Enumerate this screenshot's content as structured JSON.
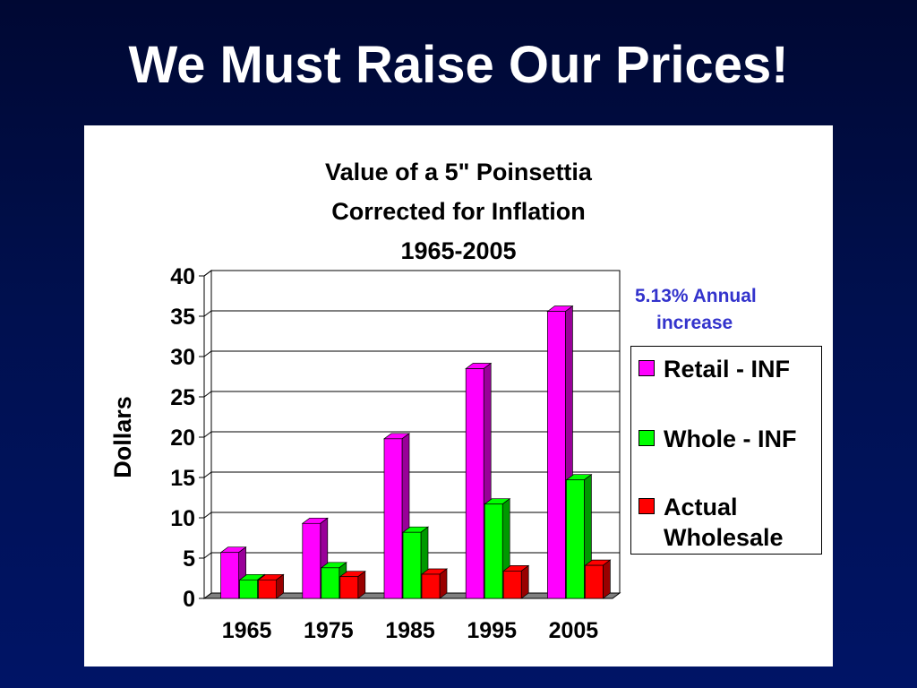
{
  "slide": {
    "title": "We Must Raise Our Prices!"
  },
  "chart": {
    "title_lines": [
      "Value of a 5\" Poinsettia",
      "Corrected for Inflation",
      "1965-2005"
    ],
    "annotation_lines": [
      "5.13% Annual",
      "increase"
    ],
    "legend": [
      {
        "label": "Retail - INF",
        "color": "#ff00ff"
      },
      {
        "label": "Whole - INF",
        "color": "#00ff00"
      },
      {
        "label": "Actual Wholesale",
        "color": "#ff0000"
      }
    ]
  },
  "chart_data": {
    "type": "bar",
    "title": "Value of a 5\" Poinsettia Corrected for Inflation 1965-2005",
    "ylabel": "Dollars",
    "xlabel": "",
    "categories": [
      "1965",
      "1975",
      "1985",
      "1995",
      "2005"
    ],
    "ylim": [
      0,
      40
    ],
    "yticks": [
      0,
      5,
      10,
      15,
      20,
      25,
      30,
      35,
      40
    ],
    "grid": true,
    "legend_position": "right",
    "series": [
      {
        "name": "Retail - INF",
        "color": "#ff00ff",
        "dark": "#990099",
        "values": [
          5.7,
          9.3,
          19.8,
          28.5,
          35.6
        ]
      },
      {
        "name": "Whole - INF",
        "color": "#00ff00",
        "dark": "#009900",
        "values": [
          2.3,
          3.8,
          8.2,
          11.7,
          14.7
        ]
      },
      {
        "name": "Actual Wholesale",
        "color": "#ff0000",
        "dark": "#990000",
        "values": [
          2.3,
          2.7,
          3.0,
          3.4,
          4.1
        ]
      }
    ]
  }
}
